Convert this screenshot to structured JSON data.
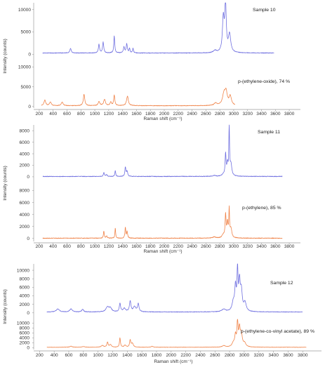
{
  "chart_data": [
    {
      "type": "line",
      "panel": "a",
      "xlabel": "Raman shift (cm⁻¹)",
      "ylabel": "Intensity (counts)",
      "xlim": [
        120,
        3880
      ],
      "x_ticks": [
        200,
        400,
        600,
        800,
        1000,
        1200,
        1400,
        1600,
        1800,
        2000,
        2200,
        2400,
        2600,
        2800,
        3000,
        3200,
        3400,
        3600,
        3800
      ],
      "colors": {
        "upper": "#7070e0",
        "lower": "#f0844a"
      },
      "upper": {
        "label": "Sample 10",
        "ylim": [
          -400,
          11500
        ],
        "y_ticks": [
          0,
          5000,
          10000
        ],
        "x_range": [
          250,
          3580
        ],
        "baseline": 300,
        "peaks": [
          [
            650,
            1000,
            12
          ],
          [
            1060,
            1900,
            10
          ],
          [
            1120,
            2400,
            10
          ],
          [
            1280,
            3800,
            8
          ],
          [
            1420,
            1300,
            10
          ],
          [
            1460,
            2000,
            10
          ],
          [
            1500,
            1000,
            8
          ],
          [
            1550,
            1000,
            8
          ],
          [
            2730,
            500,
            25
          ],
          [
            2850,
            7500,
            15
          ],
          [
            2882,
            11000,
            12
          ],
          [
            2940,
            4000,
            20
          ]
        ]
      },
      "lower": {
        "label": "p-(ethylene-oxide), 74 %",
        "ylim": [
          -400,
          11500
        ],
        "y_ticks": [
          0,
          5000,
          10000
        ],
        "x_range": [
          230,
          3020
        ],
        "baseline": 200,
        "peaks": [
          [
            280,
            1400,
            15
          ],
          [
            360,
            900,
            15
          ],
          [
            530,
            900,
            15
          ],
          [
            845,
            2900,
            12
          ],
          [
            1060,
            1000,
            15
          ],
          [
            1140,
            1600,
            15
          ],
          [
            1230,
            900,
            12
          ],
          [
            1280,
            2600,
            10
          ],
          [
            1470,
            2400,
            15
          ],
          [
            2740,
            600,
            25
          ],
          [
            2860,
            2800,
            25
          ],
          [
            2890,
            3000,
            20
          ],
          [
            2950,
            2300,
            20
          ]
        ]
      }
    },
    {
      "type": "line",
      "panel": "b",
      "xlabel": "Raman shift (cm⁻¹)",
      "ylabel": "Intensity (counts)",
      "xlim": [
        120,
        3880
      ],
      "x_ticks": [
        200,
        400,
        600,
        800,
        1000,
        1200,
        1400,
        1600,
        1800,
        2000,
        2200,
        2400,
        2600,
        2800,
        3000,
        3200,
        3400,
        3600,
        3800
      ],
      "colors": {
        "upper": "#7070e0",
        "lower": "#f0844a"
      },
      "upper": {
        "label": "Sample 11",
        "ylim": [
          -500,
          9000
        ],
        "y_ticks": [
          0,
          2000,
          4000,
          6000,
          8000
        ],
        "x_range": [
          250,
          3700
        ],
        "baseline": 60,
        "peaks": [
          [
            1130,
            700,
            8
          ],
          [
            1170,
            300,
            10
          ],
          [
            1295,
            1000,
            7
          ],
          [
            1440,
            1600,
            8
          ],
          [
            1465,
            900,
            10
          ],
          [
            2720,
            150,
            25
          ],
          [
            2850,
            300,
            20
          ],
          [
            2883,
            3800,
            8
          ],
          [
            2910,
            2000,
            10
          ],
          [
            2935,
            8500,
            6
          ],
          [
            2960,
            2000,
            15
          ]
        ]
      },
      "lower": {
        "label": "p-(ethylene), 85 %",
        "ylim": [
          -500,
          9000
        ],
        "y_ticks": [
          0,
          2000,
          4000,
          6000,
          8000
        ],
        "x_range": [
          250,
          3700
        ],
        "baseline": 40,
        "peaks": [
          [
            1130,
            1200,
            7
          ],
          [
            1170,
            400,
            8
          ],
          [
            1295,
            1700,
            6
          ],
          [
            1440,
            1800,
            7
          ],
          [
            1465,
            1100,
            8
          ],
          [
            2720,
            200,
            25
          ],
          [
            2850,
            500,
            20
          ],
          [
            2883,
            3800,
            8
          ],
          [
            2910,
            2500,
            10
          ],
          [
            2935,
            4600,
            6
          ],
          [
            2960,
            1500,
            15
          ]
        ]
      }
    },
    {
      "type": "line",
      "panel": "c",
      "xlabel": "Raman shift (cm⁻¹)",
      "ylabel": "Intensity (counts)",
      "xlim": [
        120,
        3980
      ],
      "x_ticks": [
        200,
        400,
        600,
        800,
        1000,
        1200,
        1400,
        1600,
        1800,
        2000,
        2200,
        2400,
        2600,
        2800,
        3000,
        3200,
        3400,
        3600,
        3800
      ],
      "colors": {
        "upper": "#7070e0",
        "lower": "#f0844a"
      },
      "upper": {
        "label": "Sample 12",
        "ylim": [
          -700,
          11500
        ],
        "y_ticks": [
          0,
          2000,
          4000,
          6000,
          8000,
          10000
        ],
        "x_range": [
          300,
          3800
        ],
        "baseline": 200,
        "peaks": [
          [
            450,
            700,
            25
          ],
          [
            630,
            700,
            20
          ],
          [
            790,
            600,
            15
          ],
          [
            1130,
            1200,
            25
          ],
          [
            1170,
            800,
            20
          ],
          [
            1300,
            2000,
            10
          ],
          [
            1360,
            800,
            20
          ],
          [
            1440,
            2500,
            12
          ],
          [
            1500,
            1200,
            20
          ],
          [
            1550,
            1900,
            12
          ],
          [
            2720,
            600,
            30
          ],
          [
            2850,
            2000,
            20
          ],
          [
            2880,
            5500,
            12
          ],
          [
            2908,
            9500,
            8
          ],
          [
            2935,
            6500,
            12
          ],
          [
            2960,
            4500,
            15
          ],
          [
            3010,
            2000,
            20
          ]
        ]
      },
      "lower": {
        "label": "p-(ethylene-co-vinyl acetate), 89 %",
        "ylim": [
          -700,
          11500
        ],
        "y_ticks": [
          0,
          2000,
          4000,
          6000,
          8000,
          10000
        ],
        "x_range": [
          300,
          3850
        ],
        "baseline": 200,
        "peaks": [
          [
            630,
            400,
            20
          ],
          [
            800,
            300,
            20
          ],
          [
            1060,
            700,
            20
          ],
          [
            1130,
            2000,
            10
          ],
          [
            1170,
            1000,
            15
          ],
          [
            1300,
            3800,
            8
          ],
          [
            1370,
            800,
            15
          ],
          [
            1440,
            2800,
            10
          ],
          [
            1470,
            1500,
            15
          ],
          [
            1740,
            400,
            15
          ],
          [
            2720,
            600,
            25
          ],
          [
            2850,
            1500,
            20
          ],
          [
            2880,
            4500,
            12
          ],
          [
            2908,
            10200,
            8
          ],
          [
            2935,
            7000,
            12
          ],
          [
            2960,
            5000,
            15
          ],
          [
            3005,
            1500,
            20
          ]
        ]
      }
    }
  ]
}
